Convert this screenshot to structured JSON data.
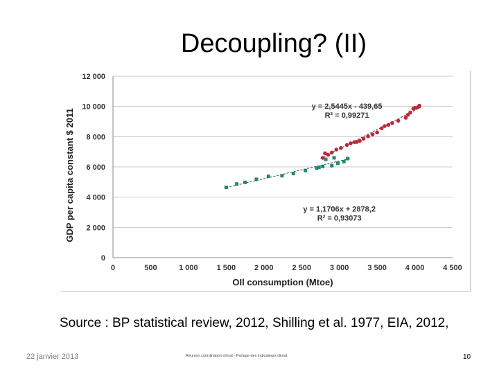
{
  "slide": {
    "title": "Decoupling? (II)",
    "source": "Source :  BP statistical review, 2012, Shilling et al.  1977, EIA, 2012,",
    "footer_date": "22 janvier 2013",
    "footer_center": "Réunion coordination climat - Partage des indicateurs climat",
    "page_number": "10"
  },
  "chart_data": {
    "type": "scatter",
    "title": "",
    "xlabel": "OIl consumption (Mtoe)",
    "ylabel": "GDP per capita constant $ 2011",
    "xlim": [
      0,
      4500
    ],
    "ylim": [
      0,
      12000
    ],
    "x_ticks": [
      0,
      500,
      1000,
      1500,
      2000,
      2500,
      3000,
      3500,
      4000,
      4500
    ],
    "x_tick_labels": [
      "0",
      "500",
      "1 000",
      "1 500",
      "2 000",
      "2 500",
      "3 000",
      "3 500",
      "4 000",
      "4 500"
    ],
    "y_ticks": [
      0,
      2000,
      4000,
      6000,
      8000,
      10000,
      12000
    ],
    "y_tick_labels": [
      "0",
      "2 000",
      "4 000",
      "6 000",
      "8 000",
      "10 000",
      "12 000"
    ],
    "grid": true,
    "series": [
      {
        "name": "green",
        "color": "#1f8a6e",
        "marker": "square",
        "points": [
          [
            1500,
            4650
          ],
          [
            1640,
            4870
          ],
          [
            1750,
            4980
          ],
          [
            1900,
            5180
          ],
          [
            2060,
            5380
          ],
          [
            2240,
            5420
          ],
          [
            2390,
            5560
          ],
          [
            2550,
            5760
          ],
          [
            2700,
            5920
          ],
          [
            2730,
            5980
          ],
          [
            2780,
            6030
          ],
          [
            2820,
            6500
          ],
          [
            2900,
            6080
          ],
          [
            2930,
            6600
          ],
          [
            2980,
            6250
          ],
          [
            3060,
            6350
          ],
          [
            3110,
            6550
          ]
        ],
        "trendline": {
          "slope": 1.1706,
          "intercept": 2878.2,
          "x_range": [
            1500,
            3150
          ]
        },
        "equation": "y = 1,1706x + 2878,2",
        "r2": "R² = 0,93073"
      },
      {
        "name": "red",
        "color": "#c0273a",
        "marker": "circle",
        "points": [
          [
            2780,
            6600
          ],
          [
            2810,
            6900
          ],
          [
            2850,
            6800
          ],
          [
            2900,
            6950
          ],
          [
            2960,
            7150
          ],
          [
            3020,
            7250
          ],
          [
            3100,
            7450
          ],
          [
            3150,
            7560
          ],
          [
            3200,
            7640
          ],
          [
            3230,
            7650
          ],
          [
            3270,
            7720
          ],
          [
            3320,
            7860
          ],
          [
            3380,
            8020
          ],
          [
            3440,
            8150
          ],
          [
            3500,
            8280
          ],
          [
            3560,
            8550
          ],
          [
            3600,
            8700
          ],
          [
            3650,
            8780
          ],
          [
            3700,
            8900
          ],
          [
            3780,
            9050
          ],
          [
            3880,
            9250
          ],
          [
            3910,
            9450
          ],
          [
            3940,
            9600
          ],
          [
            3980,
            9850
          ],
          [
            4000,
            9900
          ],
          [
            4040,
            9950
          ],
          [
            4060,
            10050
          ]
        ],
        "trendline": {
          "slope": 2.5445,
          "intercept": -439.65,
          "x_range": [
            2750,
            4080
          ]
        },
        "equation": "y = 2,5445x - 439,65",
        "r2": "R² = 0,99271"
      }
    ]
  }
}
